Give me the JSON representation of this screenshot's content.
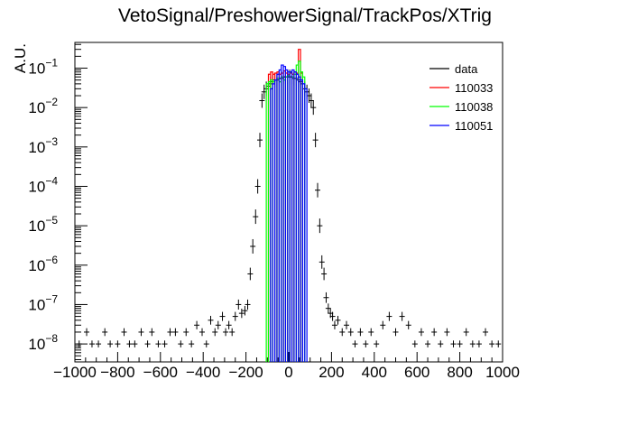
{
  "chart_data": {
    "type": "histogram",
    "title": "VetoSignal/PreshowerSignal/TrackPos/XTrig",
    "xlabel": "",
    "ylabel": "A.U.",
    "xlim": [
      -1000,
      1000
    ],
    "ylim": [
      3.5e-09,
      0.45
    ],
    "yscale": "log",
    "grid": false,
    "legend_position": "top-right",
    "x_ticks": [
      "−1000",
      "−800",
      "−600",
      "−400",
      "−200",
      "0",
      "200",
      "400",
      "600",
      "800",
      "1000"
    ],
    "x_tick_values": [
      -1000,
      -800,
      -600,
      -400,
      -200,
      0,
      200,
      400,
      600,
      800,
      1000
    ],
    "y_ticks": [
      {
        "value": 1e-08,
        "mantissa": "10",
        "exp": "−8"
      },
      {
        "value": 1e-07,
        "mantissa": "10",
        "exp": "−7"
      },
      {
        "value": 1e-06,
        "mantissa": "10",
        "exp": "−6"
      },
      {
        "value": 1e-05,
        "mantissa": "10",
        "exp": "−5"
      },
      {
        "value": 0.0001,
        "mantissa": "10",
        "exp": "−4"
      },
      {
        "value": 0.001,
        "mantissa": "10",
        "exp": "−3"
      },
      {
        "value": 0.01,
        "mantissa": "10",
        "exp": "−2"
      },
      {
        "value": 0.1,
        "mantissa": "10",
        "exp": "−1"
      }
    ],
    "series": [
      {
        "name": "data",
        "style": "points",
        "color": "#000000",
        "x": [
          -980,
          -945,
          -920,
          -890,
          -860,
          -835,
          -800,
          -770,
          -745,
          -720,
          -690,
          -660,
          -640,
          -610,
          -580,
          -555,
          -530,
          -505,
          -480,
          -455,
          -430,
          -405,
          -385,
          -365,
          -345,
          -330,
          -310,
          -295,
          -280,
          -265,
          -250,
          -235,
          -220,
          -205,
          -192,
          -180,
          -168,
          -155,
          -145,
          -135,
          -125,
          -115,
          -105,
          -95,
          -85,
          -75,
          -65,
          -55,
          -45,
          -35,
          -25,
          -15,
          -5,
          5,
          15,
          25,
          35,
          45,
          55,
          65,
          75,
          85,
          95,
          105,
          115,
          125,
          135,
          145,
          155,
          165,
          175,
          185,
          195,
          205,
          215,
          230,
          250,
          270,
          290,
          310,
          335,
          360,
          385,
          410,
          440,
          470,
          500,
          530,
          560,
          590,
          620,
          650,
          680,
          710,
          740,
          770,
          800,
          830,
          860,
          890,
          920,
          950,
          980
        ],
        "y": [
          1e-08,
          2e-08,
          1e-08,
          1e-08,
          2e-08,
          1e-08,
          1e-08,
          2e-08,
          1e-08,
          1e-08,
          2e-08,
          1e-08,
          2e-08,
          1e-08,
          1e-08,
          2e-08,
          2e-08,
          1e-08,
          2e-08,
          1e-08,
          3e-08,
          2e-08,
          1e-08,
          4e-08,
          2e-08,
          3e-08,
          5e-08,
          2e-08,
          3e-08,
          2e-08,
          5e-08,
          1e-07,
          6e-08,
          7e-08,
          1e-07,
          6e-07,
          3e-06,
          1.7e-05,
          0.0001,
          0.0015,
          0.015,
          0.025,
          0.03,
          0.035,
          0.04,
          0.045,
          0.05,
          0.05,
          0.055,
          0.055,
          0.06,
          0.06,
          0.06,
          0.06,
          0.06,
          0.055,
          0.055,
          0.05,
          0.045,
          0.04,
          0.03,
          0.025,
          0.02,
          0.015,
          0.01,
          0.0015,
          8e-05,
          1e-05,
          1.2e-06,
          6e-07,
          1.5e-07,
          8e-08,
          6e-08,
          5e-08,
          3e-08,
          4e-08,
          2e-08,
          3e-08,
          2e-08,
          1e-08,
          2e-08,
          1e-08,
          2e-08,
          1e-08,
          3e-08,
          5e-08,
          2e-08,
          5e-08,
          3e-08,
          1e-08,
          2e-08,
          1e-08,
          2e-08,
          1e-08,
          2e-08,
          1e-08,
          1e-08,
          2e-08,
          1e-08,
          1e-08,
          2e-08,
          1e-08,
          1e-08
        ]
      },
      {
        "name": "110033",
        "style": "step",
        "color": "#ff0000",
        "bin_width": 10,
        "x": [
          -90,
          -80,
          -70,
          -60,
          -50,
          -40,
          -30,
          -20,
          -10,
          0,
          10,
          20,
          30,
          40,
          50,
          60
        ],
        "y": [
          0.07,
          0.08,
          0.07,
          0.075,
          0.08,
          0.07,
          0.075,
          0.085,
          0.075,
          0.07,
          0.075,
          0.07,
          0.08,
          0.075,
          0.3,
          0.075
        ]
      },
      {
        "name": "110038",
        "style": "step",
        "color": "#00ff00",
        "bin_width": 10,
        "x": [
          -100,
          -90,
          -80,
          -70,
          -60,
          -50,
          -40,
          -30,
          -20,
          -10,
          0,
          10,
          20,
          30,
          40,
          50,
          60,
          70
        ],
        "y": [
          0.04,
          0.045,
          0.05,
          0.045,
          0.05,
          0.055,
          0.045,
          0.06,
          0.05,
          0.06,
          0.065,
          0.08,
          0.06,
          0.07,
          0.12,
          0.15,
          0.08,
          0.06
        ]
      },
      {
        "name": "110051",
        "style": "step",
        "color": "#0000ff",
        "bin_width": 10,
        "x": [
          -80,
          -70,
          -60,
          -50,
          -40,
          -30,
          -20,
          -10,
          0,
          10,
          20,
          30,
          40,
          50,
          60,
          70,
          80
        ],
        "y": [
          0.03,
          0.04,
          0.05,
          0.07,
          0.09,
          0.12,
          0.11,
          0.09,
          0.08,
          0.08,
          0.09,
          0.08,
          0.07,
          0.06,
          0.05,
          0.04,
          0.03
        ]
      }
    ]
  }
}
